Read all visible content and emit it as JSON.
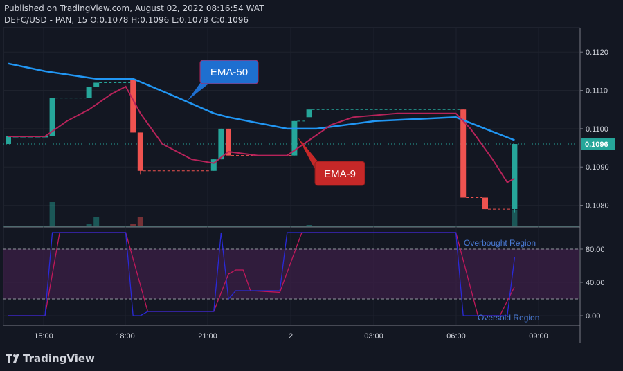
{
  "header": {
    "published": "Published on TradingView.com, August 02, 2022 08:16:54 WAT",
    "symbol_line": "DEFC/USD - PAN, 15 O:0.1078 H:0.1096 L:0.1078 C:0.1096"
  },
  "price_axis": {
    "ticks": [
      "0.1120",
      "0.1110",
      "0.1100",
      "0.1090",
      "0.1080"
    ],
    "tick_values": [
      0.112,
      0.111,
      0.11,
      0.109,
      0.108
    ],
    "current_price": "0.1096",
    "current_value": 0.1096
  },
  "osc_axis": {
    "ticks": [
      "80.00",
      "40.00",
      "0.00"
    ],
    "tick_values": [
      80,
      40,
      0
    ]
  },
  "time_axis": {
    "ticks": [
      "15:00",
      "18:00",
      "21:00",
      "2",
      "03:00",
      "06:00",
      "09:00"
    ]
  },
  "annotations": {
    "ema50": "EMA-50",
    "ema9": "EMA-9",
    "overbought": "Overbought Region",
    "oversold": "Oversold Region"
  },
  "footer": {
    "brand": "TradingView"
  },
  "colors": {
    "background": "#131722",
    "up": "#26a69a",
    "down": "#ef5350",
    "ema50": "#2196f3",
    "ema9": "#b7235a",
    "stoch_k": "#2a2ad9",
    "stoch_d": "#c2185b",
    "band": "#3b1f45",
    "ema50_label_bg": "#1e6fd0",
    "ema9_label_bg": "#c62828"
  },
  "chart_data": [
    {
      "type": "candlestick",
      "title": "DEFC/USD - PAN, 15",
      "candles": [
        {
          "x": 0,
          "o": 0.1096,
          "h": 0.1098,
          "l": 0.1096,
          "c": 0.1098
        },
        {
          "x": 1,
          "o": 0.1098,
          "h": 0.1098,
          "l": 0.1098,
          "c": 0.1098
        },
        {
          "x": 2,
          "o": 0.1098,
          "h": 0.1098,
          "l": 0.1098,
          "c": 0.1098
        },
        {
          "x": 3,
          "o": 0.1098,
          "h": 0.1098,
          "l": 0.1098,
          "c": 0.1098
        },
        {
          "x": 4,
          "o": 0.1098,
          "h": 0.1098,
          "l": 0.1098,
          "c": 0.1098
        },
        {
          "x": 5,
          "o": 0.1098,
          "h": 0.1098,
          "l": 0.1098,
          "c": 0.1098
        },
        {
          "x": 6,
          "o": 0.1098,
          "h": 0.1108,
          "l": 0.1098,
          "c": 0.1108
        },
        {
          "x": 11,
          "o": 0.1108,
          "h": 0.1111,
          "l": 0.1108,
          "c": 0.1111
        },
        {
          "x": 12,
          "o": 0.1111,
          "h": 0.1112,
          "l": 0.1111,
          "c": 0.1112
        },
        {
          "x": 17,
          "o": 0.1113,
          "h": 0.1113,
          "l": 0.1099,
          "c": 0.1099
        },
        {
          "x": 18,
          "o": 0.1099,
          "h": 0.1099,
          "l": 0.1088,
          "c": 0.1089
        },
        {
          "x": 28,
          "o": 0.1089,
          "h": 0.1092,
          "l": 0.1089,
          "c": 0.1092
        },
        {
          "x": 29,
          "o": 0.1092,
          "h": 0.11,
          "l": 0.1092,
          "c": 0.11
        },
        {
          "x": 30,
          "o": 0.11,
          "h": 0.11,
          "l": 0.1093,
          "c": 0.1093
        },
        {
          "x": 39,
          "o": 0.1093,
          "h": 0.1102,
          "l": 0.1093,
          "c": 0.1102
        },
        {
          "x": 41,
          "o": 0.1103,
          "h": 0.1105,
          "l": 0.1103,
          "c": 0.1105
        },
        {
          "x": 62,
          "o": 0.1105,
          "h": 0.1105,
          "l": 0.1082,
          "c": 0.1082
        },
        {
          "x": 65,
          "o": 0.1082,
          "h": 0.1082,
          "l": 0.1079,
          "c": 0.1079
        },
        {
          "x": 69,
          "o": 0.1079,
          "h": 0.1096,
          "l": 0.1078,
          "c": 0.1096
        }
      ],
      "series": [
        {
          "name": "EMA-50",
          "points": [
            [
              0,
              0.1117
            ],
            [
              5,
              0.1115
            ],
            [
              12,
              0.1113
            ],
            [
              17,
              0.1113
            ],
            [
              22,
              0.1109
            ],
            [
              28,
              0.1104
            ],
            [
              30,
              0.1103
            ],
            [
              38,
              0.11
            ],
            [
              42,
              0.11
            ],
            [
              50,
              0.1102
            ],
            [
              61,
              0.1103
            ],
            [
              65,
              0.11
            ],
            [
              69,
              0.1097
            ]
          ]
        },
        {
          "name": "EMA-9",
          "points": [
            [
              0,
              0.1098
            ],
            [
              5,
              0.1098
            ],
            [
              8,
              0.1102
            ],
            [
              11,
              0.1105
            ],
            [
              14,
              0.1109
            ],
            [
              16,
              0.1111
            ],
            [
              18,
              0.1104
            ],
            [
              21,
              0.1096
            ],
            [
              25,
              0.1092
            ],
            [
              28,
              0.1091
            ],
            [
              30,
              0.1094
            ],
            [
              34,
              0.1093
            ],
            [
              38,
              0.1093
            ],
            [
              41,
              0.1097
            ],
            [
              44,
              0.1101
            ],
            [
              47,
              0.1103
            ],
            [
              53,
              0.1104
            ],
            [
              61,
              0.1104
            ],
            [
              63,
              0.11
            ],
            [
              66,
              0.1092
            ],
            [
              68,
              0.1086
            ],
            [
              69,
              0.1087
            ]
          ]
        }
      ],
      "ylim": [
        0.10745,
        0.1126
      ]
    },
    {
      "type": "line",
      "title": "",
      "ylim": [
        -10,
        105
      ],
      "bands": [
        20,
        80
      ],
      "series": [
        {
          "name": "",
          "points": [
            [
              0,
              0
            ],
            [
              5,
              0
            ],
            [
              6,
              100
            ],
            [
              7,
              100
            ],
            [
              16,
              100
            ],
            [
              17,
              0
            ],
            [
              18,
              0
            ],
            [
              19,
              5
            ],
            [
              28,
              5
            ],
            [
              29,
              100
            ],
            [
              30,
              20
            ],
            [
              31,
              30
            ],
            [
              33,
              30
            ],
            [
              37,
              30
            ],
            [
              38,
              100
            ],
            [
              40,
              100
            ],
            [
              61,
              100
            ],
            [
              62,
              0
            ],
            [
              68,
              0
            ],
            [
              69,
              70
            ]
          ]
        },
        {
          "name": "",
          "points": [
            [
              0,
              0
            ],
            [
              5,
              0
            ],
            [
              7,
              100
            ],
            [
              16,
              100
            ],
            [
              19,
              5
            ],
            [
              20,
              5
            ],
            [
              28,
              5
            ],
            [
              30,
              50
            ],
            [
              31,
              55
            ],
            [
              32,
              55
            ],
            [
              33,
              30
            ],
            [
              37,
              28
            ],
            [
              40,
              100
            ],
            [
              61,
              100
            ],
            [
              64,
              0
            ],
            [
              67,
              0
            ],
            [
              69,
              35
            ]
          ]
        }
      ]
    }
  ]
}
